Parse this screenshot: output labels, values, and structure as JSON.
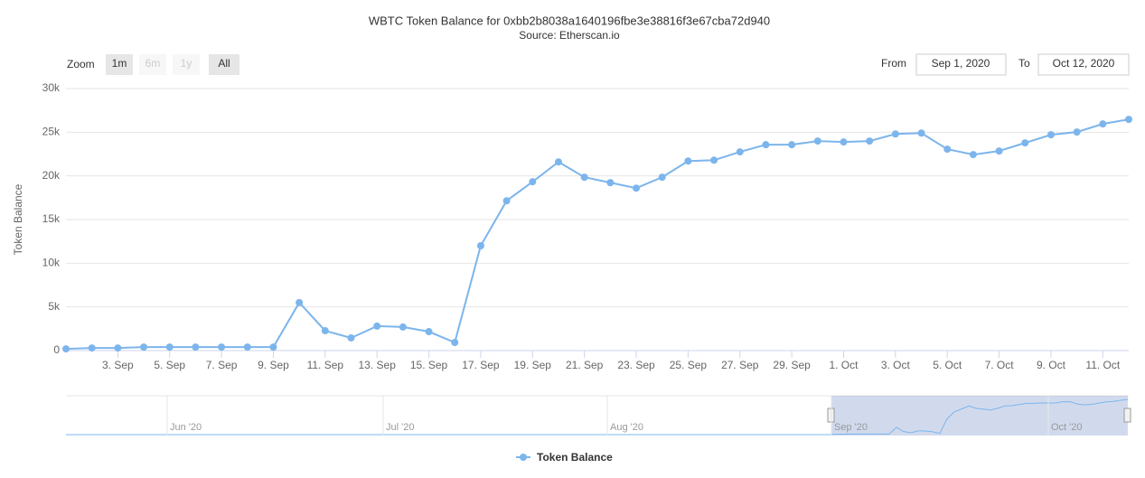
{
  "chart_data": {
    "type": "line",
    "title": "WBTC Token Balance for 0xbb2b8038a1640196fbe3e38816f3e67cba72d940",
    "subtitle": "Source: Etherscan.io",
    "y_label": "Token Balance",
    "categories": [
      null,
      null,
      "3. Sep",
      null,
      "5. Sep",
      null,
      "7. Sep",
      null,
      "9. Sep",
      null,
      "11. Sep",
      null,
      "13. Sep",
      null,
      "15. Sep",
      null,
      "17. Sep",
      null,
      "19. Sep",
      null,
      "21. Sep",
      null,
      "23. Sep",
      null,
      "25. Sep",
      null,
      "27. Sep",
      null,
      "29. Sep",
      null,
      "1. Oct",
      null,
      "3. Oct",
      null,
      "5. Oct",
      null,
      "7. Oct",
      null,
      "9. Oct",
      null,
      "11. Oct",
      null
    ],
    "series": [
      {
        "name": "Token Balance",
        "color": "#7cb5ec",
        "values": [
          200,
          300,
          300,
          400,
          400,
          400,
          400,
          400,
          400,
          5500,
          2270,
          1450,
          2800,
          2700,
          2170,
          930,
          12000,
          17150,
          19330,
          21600,
          19850,
          19230,
          18600,
          19850,
          21700,
          21800,
          22750,
          23570,
          23570,
          23990,
          23880,
          23990,
          24800,
          24900,
          23060,
          22440,
          22850,
          23780,
          24710,
          25020,
          25950,
          26470
        ]
      }
    ],
    "ylim": [
      0,
      30000
    ],
    "yticks": [
      0,
      {
        "value": 5000,
        "label": "5k"
      },
      {
        "value": 10000,
        "label": "10k"
      },
      {
        "value": 15000,
        "label": "15k"
      },
      {
        "value": 20000,
        "label": "20k"
      },
      {
        "value": 25000,
        "label": "25k"
      },
      {
        "value": 30000,
        "label": "30k"
      }
    ],
    "grid": true,
    "legend": "bottom",
    "range_selector": {
      "label": "Zoom",
      "buttons": [
        "1m",
        "6m",
        "1y",
        "All"
      ]
    },
    "date_inputs": {
      "from_label": "From",
      "from": "Sep 1, 2020",
      "to_label": "To",
      "to": "Oct 12, 2020"
    },
    "navigator": {
      "labels": [
        "Jun '20",
        "Jul '20",
        "Aug '20",
        "Sep '20",
        "Oct '20"
      ]
    }
  }
}
